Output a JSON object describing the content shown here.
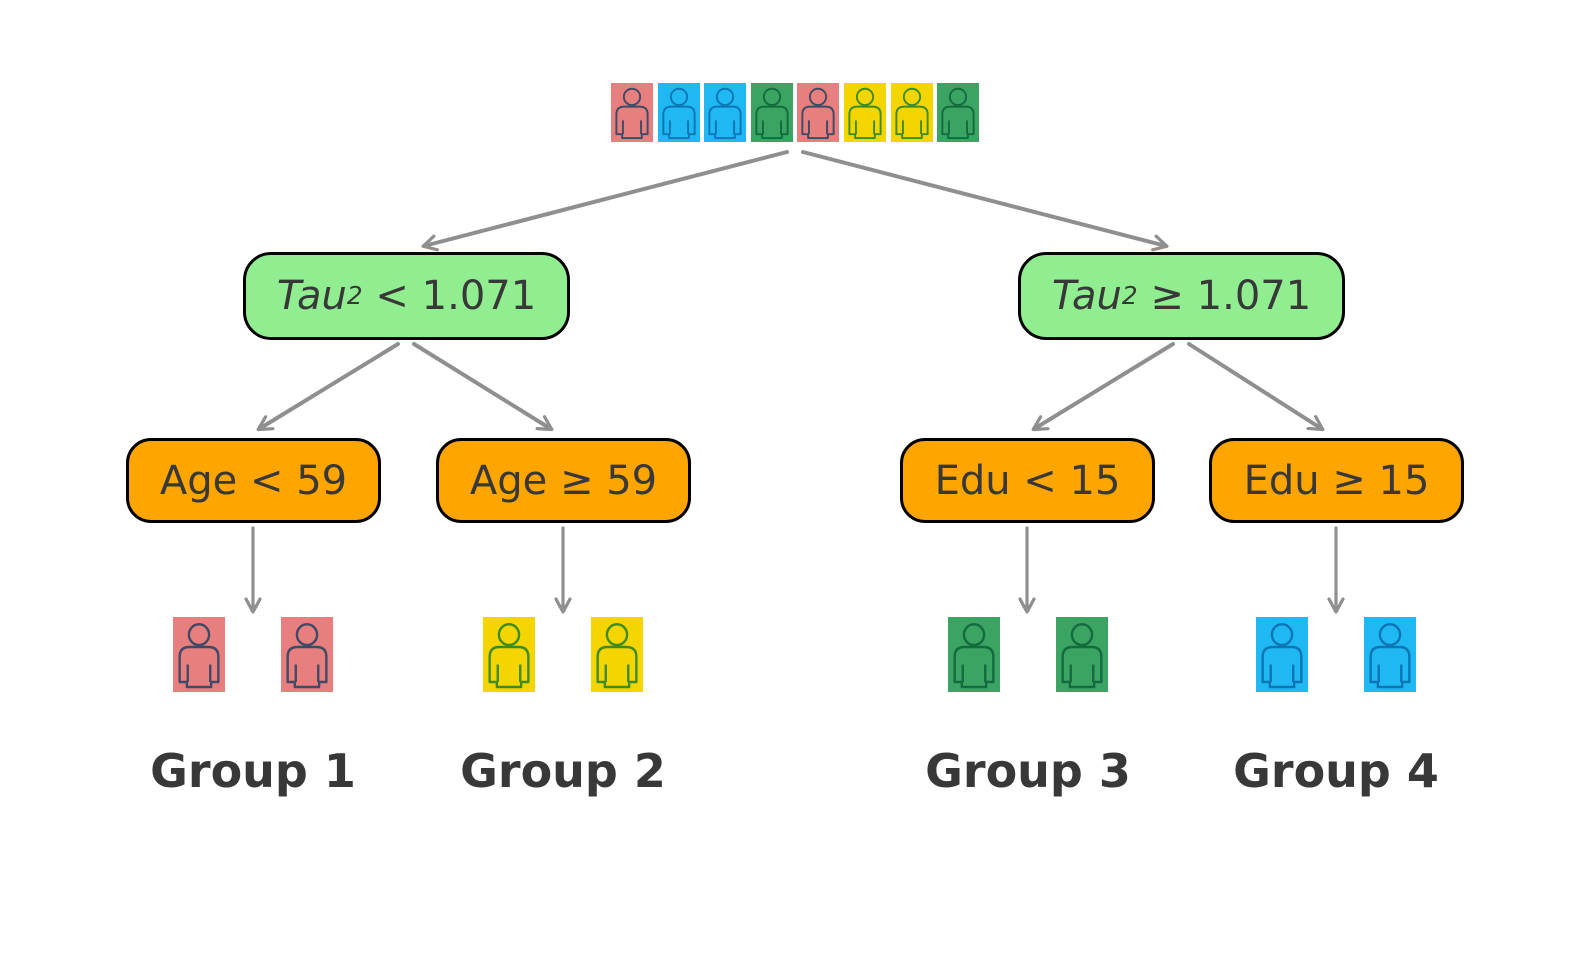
{
  "figure": {
    "background": "#ffffff",
    "type": "decision-tree-subgroup-diagram"
  },
  "population_row": {
    "members": [
      "salmon",
      "blue",
      "blue",
      "green",
      "salmon",
      "yellow",
      "yellow",
      "green"
    ]
  },
  "person_colors": {
    "salmon": {
      "fill": "#E87F7F",
      "outline": "#3E4A66"
    },
    "blue": {
      "fill": "#1FB8F2",
      "outline": "#0C76B4"
    },
    "green": {
      "fill": "#3BA463",
      "outline": "#156B3D"
    },
    "yellow": {
      "fill": "#F5D500",
      "outline": "#3E8C1E"
    }
  },
  "level1_nodes": [
    {
      "var": "Tau",
      "sub": "2",
      "op_value": " < 1.071",
      "fill": "#90EE90"
    },
    {
      "var": "Tau",
      "sub": "2",
      "op_value": " ≥ 1.071",
      "fill": "#90EE90"
    }
  ],
  "level2_nodes": [
    {
      "label": "Age < 59",
      "fill": "#FFA500"
    },
    {
      "label": "Age ≥ 59",
      "fill": "#FFA500"
    },
    {
      "label": "Edu < 15",
      "fill": "#FFA500"
    },
    {
      "label": "Edu ≥ 15",
      "fill": "#FFA500"
    }
  ],
  "groups": [
    {
      "label": "Group 1",
      "member_color": "salmon",
      "count": 2
    },
    {
      "label": "Group 2",
      "member_color": "yellow",
      "count": 2
    },
    {
      "label": "Group 3",
      "member_color": "green",
      "count": 2
    },
    {
      "label": "Group 4",
      "member_color": "blue",
      "count": 2
    }
  ],
  "styles": {
    "node_border_color": "#000000",
    "node_text_color": "#383838",
    "arrow_color": "#8F8F8F",
    "group_label_color": "#383838"
  }
}
